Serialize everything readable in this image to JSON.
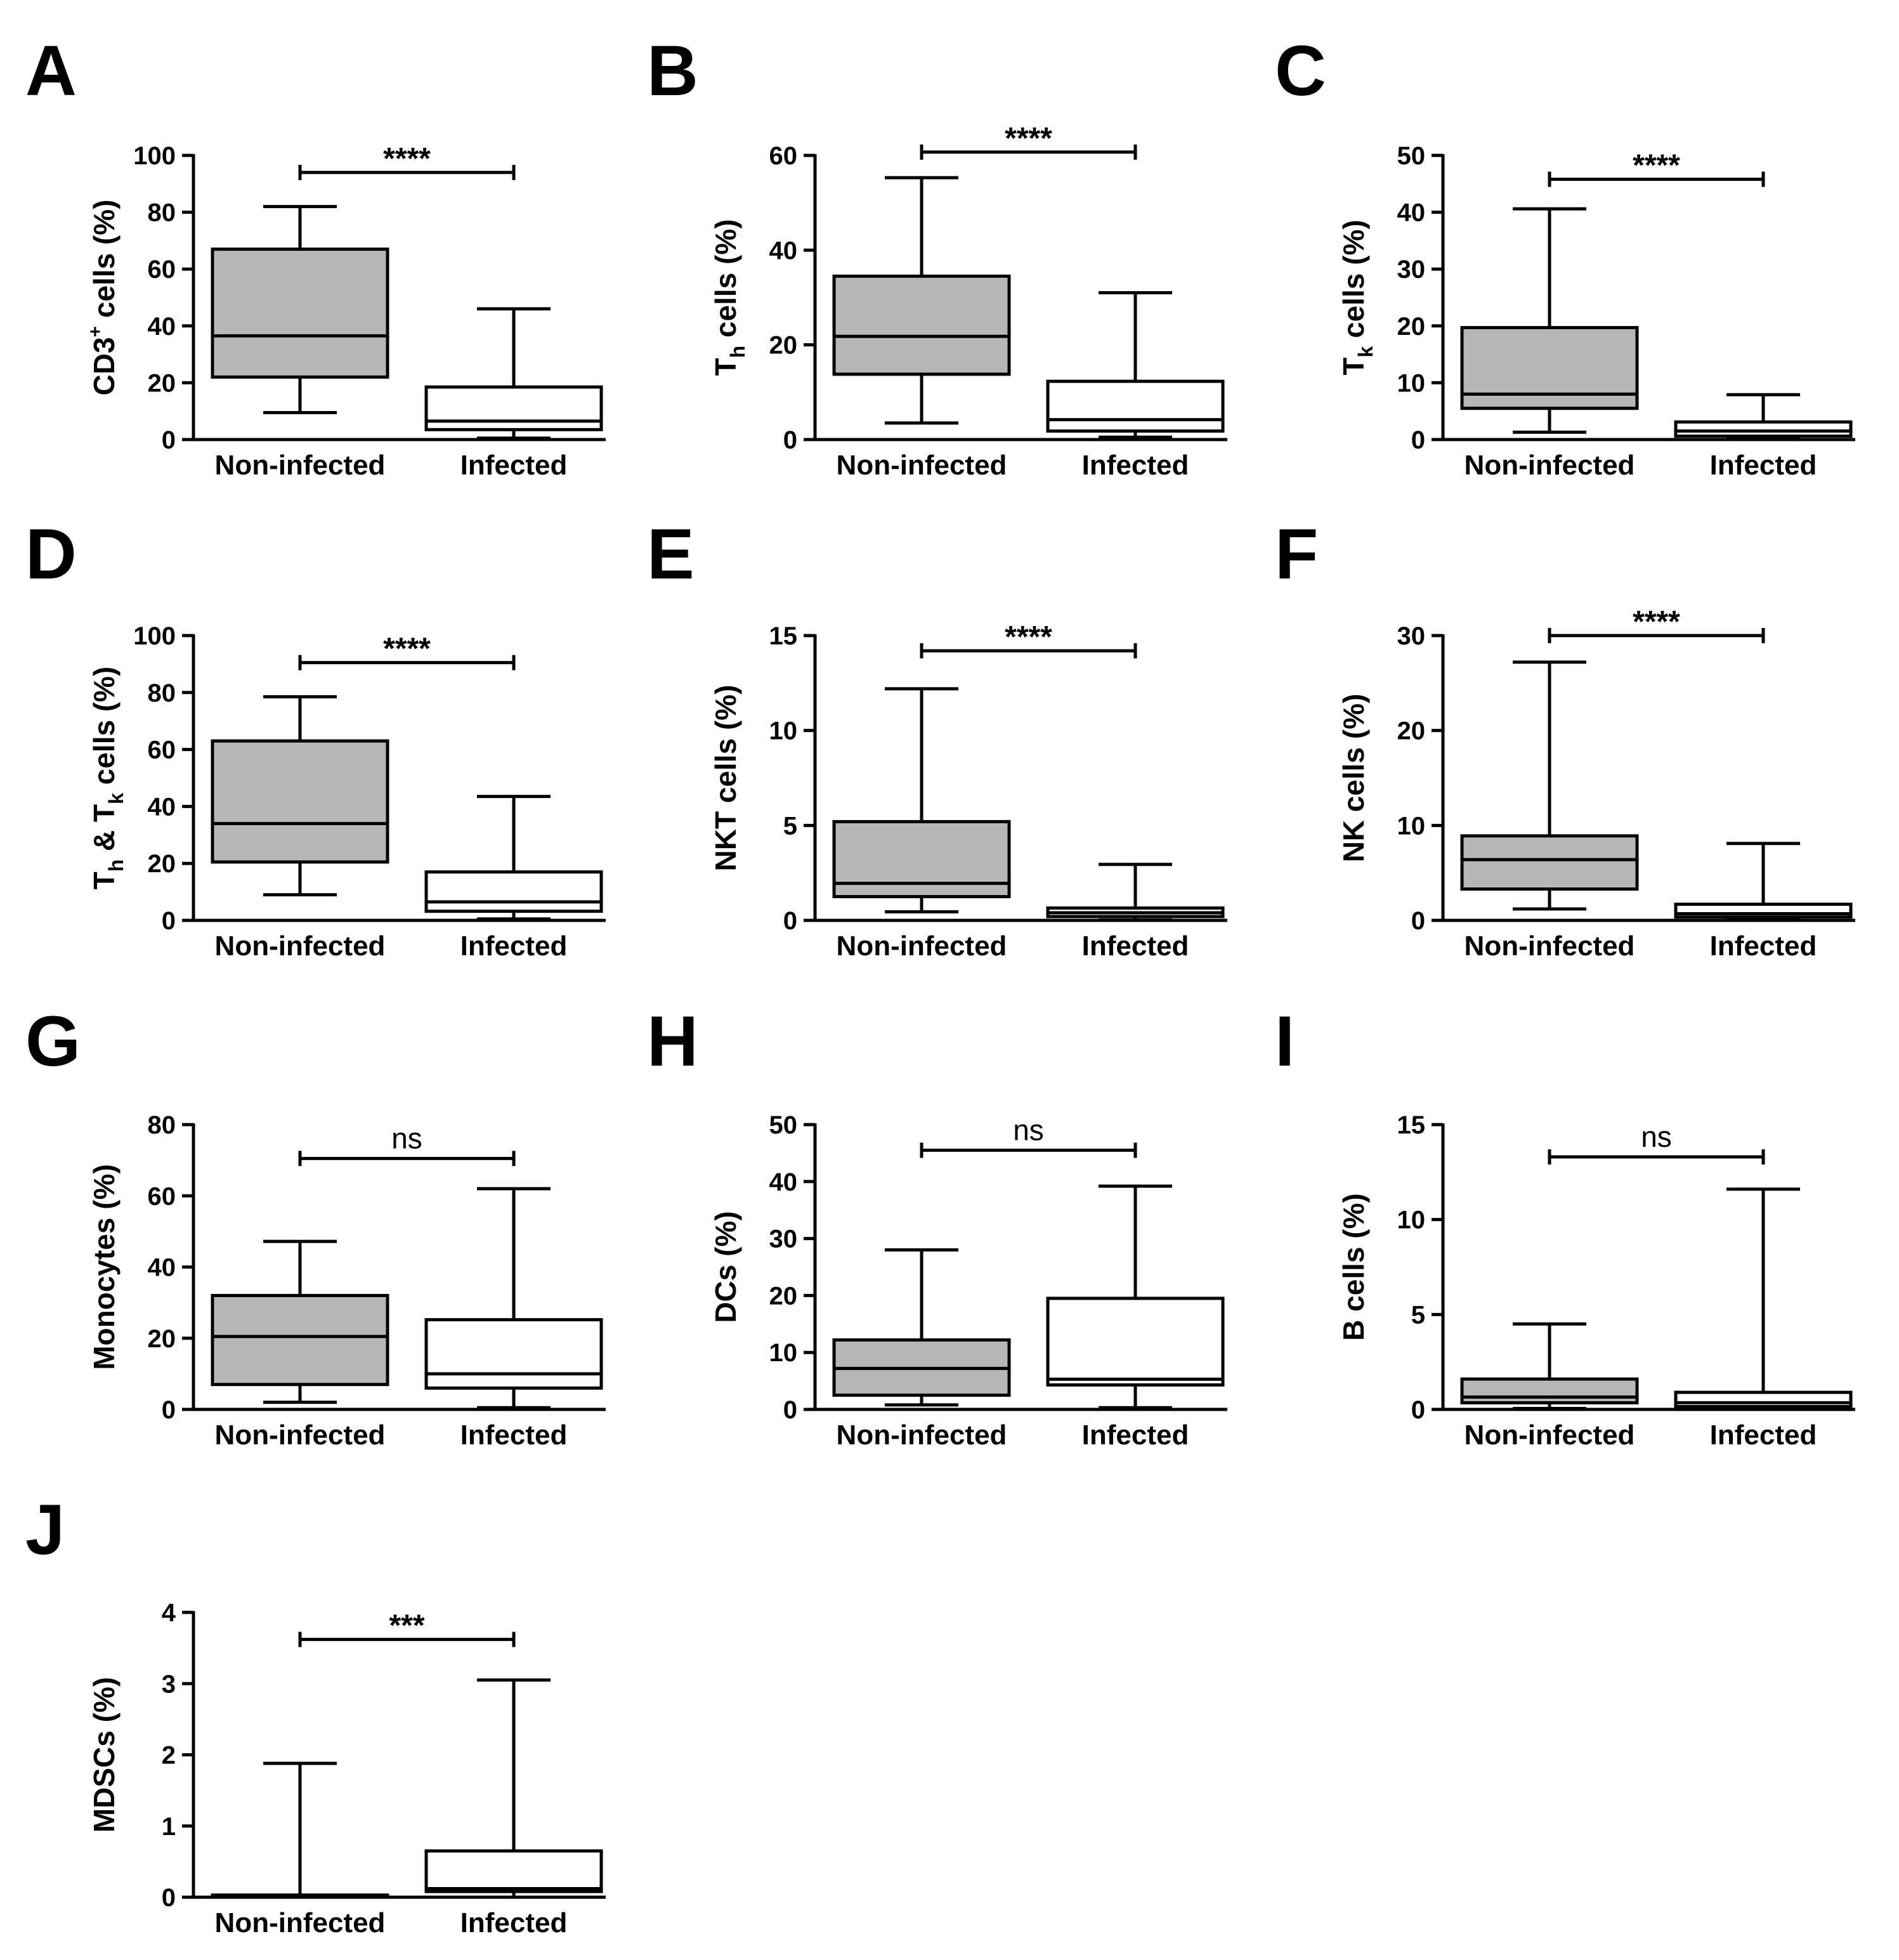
{
  "chart_data": [
    {
      "panel": "A",
      "type": "box",
      "ylabel": "CD3+ cells (%)",
      "ylabel_main": "CD3",
      "ylabel_sup": "+",
      "ylabel_sub": "",
      "ylabel_rest": " cells (%)",
      "ylim": [
        0,
        100
      ],
      "yticks": [
        0,
        20,
        40,
        60,
        80,
        100
      ],
      "categories": [
        "Non-infected",
        "Infected"
      ],
      "boxes": [
        {
          "name": "Non-infected",
          "fill": "#b7b7b7",
          "min": 9.5,
          "q1": 22,
          "median": 36.5,
          "q3": 67,
          "max": 82
        },
        {
          "name": "Infected",
          "fill": "#ffffff",
          "min": 0.5,
          "q1": 3.5,
          "median": 6.5,
          "q3": 18.5,
          "max": 46
        }
      ],
      "significance": {
        "label": "****",
        "y": 94
      }
    },
    {
      "panel": "B",
      "type": "box",
      "ylabel": "Th cells (%)",
      "ylabel_main": "T",
      "ylabel_sup": "",
      "ylabel_sub": "h",
      "ylabel_rest": " cells (%)",
      "ylim": [
        0,
        60
      ],
      "yticks": [
        0,
        20,
        40,
        60
      ],
      "categories": [
        "Non-infected",
        "Infected"
      ],
      "boxes": [
        {
          "name": "Non-infected",
          "fill": "#b7b7b7",
          "min": 3.5,
          "q1": 13.8,
          "median": 21.8,
          "q3": 34.5,
          "max": 55.3
        },
        {
          "name": "Infected",
          "fill": "#ffffff",
          "min": 0.5,
          "q1": 1.8,
          "median": 4.2,
          "q3": 12.3,
          "max": 31
        }
      ],
      "significance": {
        "label": "****",
        "y": 60.7
      }
    },
    {
      "panel": "C",
      "type": "box",
      "ylabel": "Tk cells (%)",
      "ylabel_main": "T",
      "ylabel_sup": "",
      "ylabel_sub": "k",
      "ylabel_rest": " cells (%)",
      "ylim": [
        0,
        50
      ],
      "yticks": [
        0,
        10,
        20,
        30,
        40,
        50
      ],
      "categories": [
        "Non-infected",
        "Infected"
      ],
      "boxes": [
        {
          "name": "Non-infected",
          "fill": "#b7b7b7",
          "min": 1.3,
          "q1": 5.5,
          "median": 8,
          "q3": 19.7,
          "max": 40.6
        },
        {
          "name": "Infected",
          "fill": "#ffffff",
          "min": 0.1,
          "q1": 0.6,
          "median": 1.5,
          "q3": 3.1,
          "max": 7.9
        }
      ],
      "significance": {
        "label": "****",
        "y": 45.8
      }
    },
    {
      "panel": "D",
      "type": "box",
      "ylabel": "Th & Tk cells (%)",
      "ylabel_main": "T",
      "ylabel_sup": "",
      "ylabel_sub": "h",
      "ylabel_rest": " & T",
      "ylabel_sub2": "k",
      "ylabel_rest2": " cells (%)",
      "ylim": [
        0,
        100
      ],
      "yticks": [
        0,
        20,
        40,
        60,
        80,
        100
      ],
      "categories": [
        "Non-infected",
        "Infected"
      ],
      "boxes": [
        {
          "name": "Non-infected",
          "fill": "#b7b7b7",
          "min": 9,
          "q1": 20.5,
          "median": 34,
          "q3": 63,
          "max": 78.5
        },
        {
          "name": "Infected",
          "fill": "#ffffff",
          "min": 0.5,
          "q1": 3.2,
          "median": 6.5,
          "q3": 17,
          "max": 43.5
        }
      ],
      "significance": {
        "label": "****",
        "y": 90.5
      }
    },
    {
      "panel": "E",
      "type": "box",
      "ylabel": "NKT cells (%)",
      "ylabel_main": "NKT cells (%)",
      "ylabel_sup": "",
      "ylabel_sub": "",
      "ylabel_rest": "",
      "ylim": [
        0,
        15
      ],
      "yticks": [
        0,
        5,
        10,
        15
      ],
      "categories": [
        "Non-infected",
        "Infected"
      ],
      "boxes": [
        {
          "name": "Non-infected",
          "fill": "#b7b7b7",
          "min": 0.45,
          "q1": 1.25,
          "median": 1.95,
          "q3": 5.2,
          "max": 12.2
        },
        {
          "name": "Infected",
          "fill": "#ffffff",
          "min": 0.02,
          "q1": 0.2,
          "median": 0.4,
          "q3": 0.65,
          "max": 2.95
        }
      ],
      "significance": {
        "label": "****",
        "y": 14.2
      }
    },
    {
      "panel": "F",
      "type": "box",
      "ylabel": "NK cells (%)",
      "ylabel_main": "NK cells (%)",
      "ylabel_sup": "",
      "ylabel_sub": "",
      "ylabel_rest": "",
      "ylim": [
        0,
        30
      ],
      "yticks": [
        0,
        10,
        20,
        30
      ],
      "categories": [
        "Non-infected",
        "Infected"
      ],
      "boxes": [
        {
          "name": "Non-infected",
          "fill": "#b7b7b7",
          "min": 1.2,
          "q1": 3.3,
          "median": 6.4,
          "q3": 8.9,
          "max": 27.2
        },
        {
          "name": "Infected",
          "fill": "#ffffff",
          "min": 0.05,
          "q1": 0.35,
          "median": 0.7,
          "q3": 1.7,
          "max": 8.1
        }
      ],
      "significance": {
        "label": "****",
        "y": 30
      }
    },
    {
      "panel": "G",
      "type": "box",
      "ylabel": "Monocytes (%)",
      "ylabel_main": "Monocytes (%)",
      "ylabel_sup": "",
      "ylabel_sub": "",
      "ylabel_rest": "",
      "ylim": [
        0,
        80
      ],
      "yticks": [
        0,
        20,
        40,
        60,
        80
      ],
      "categories": [
        "Non-infected",
        "Infected"
      ],
      "boxes": [
        {
          "name": "Non-infected",
          "fill": "#b7b7b7",
          "min": 2,
          "q1": 7,
          "median": 20.5,
          "q3": 32,
          "max": 47.2
        },
        {
          "name": "Infected",
          "fill": "#ffffff",
          "min": 0.5,
          "q1": 6,
          "median": 10,
          "q3": 25.2,
          "max": 62
        }
      ],
      "significance": {
        "label": "ns",
        "y": 70.5
      }
    },
    {
      "panel": "H",
      "type": "box",
      "ylabel": "DCs (%)",
      "ylabel_main": "DCs (%)",
      "ylabel_sup": "",
      "ylabel_sub": "",
      "ylabel_rest": "",
      "ylim": [
        0,
        50
      ],
      "yticks": [
        0,
        10,
        20,
        30,
        40,
        50
      ],
      "categories": [
        "Non-infected",
        "Infected"
      ],
      "boxes": [
        {
          "name": "Non-infected",
          "fill": "#b7b7b7",
          "min": 0.8,
          "q1": 2.5,
          "median": 7.2,
          "q3": 12.2,
          "max": 28
        },
        {
          "name": "Infected",
          "fill": "#ffffff",
          "min": 0.3,
          "q1": 4.3,
          "median": 5.3,
          "q3": 19.5,
          "max": 39.2
        }
      ],
      "significance": {
        "label": "ns",
        "y": 45.5
      }
    },
    {
      "panel": "I",
      "type": "box",
      "ylabel": "B cells (%)",
      "ylabel_main": "B cells (%)",
      "ylabel_sup": "",
      "ylabel_sub": "",
      "ylabel_rest": "",
      "ylim": [
        0,
        15
      ],
      "yticks": [
        0,
        5,
        10,
        15
      ],
      "categories": [
        "Non-infected",
        "Infected"
      ],
      "boxes": [
        {
          "name": "Non-infected",
          "fill": "#b7b7b7",
          "min": 0.05,
          "q1": 0.35,
          "median": 0.65,
          "q3": 1.6,
          "max": 4.5
        },
        {
          "name": "Infected",
          "fill": "#ffffff",
          "min": 0.0,
          "q1": 0.15,
          "median": 0.35,
          "q3": 0.9,
          "max": 11.6
        }
      ],
      "significance": {
        "label": "ns",
        "y": 13.3
      }
    },
    {
      "panel": "J",
      "type": "box",
      "ylabel": "MDSCs (%)",
      "ylabel_main": "MDSCs (%)",
      "ylabel_sup": "",
      "ylabel_sub": "",
      "ylabel_rest": "",
      "ylim": [
        0,
        4
      ],
      "yticks": [
        0,
        1,
        2,
        3,
        4
      ],
      "categories": [
        "Non-infected",
        "Infected"
      ],
      "boxes": [
        {
          "name": "Non-infected",
          "fill": "#b7b7b7",
          "min": 0.0,
          "q1": 0.0,
          "median": 0.01,
          "q3": 0.03,
          "max": 1.88
        },
        {
          "name": "Infected",
          "fill": "#ffffff",
          "min": 0.0,
          "q1": 0.08,
          "median": 0.12,
          "q3": 0.65,
          "max": 3.05
        }
      ],
      "significance": {
        "label": "***",
        "y": 3.62
      }
    }
  ]
}
